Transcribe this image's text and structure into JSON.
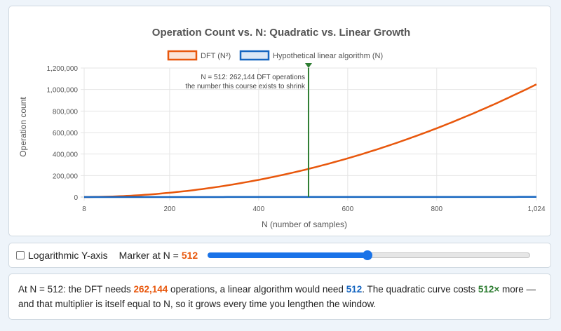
{
  "chart_data": {
    "type": "line",
    "title": "Operation Count vs. N: Quadratic vs. Linear Growth",
    "xlabel": "N (number of samples)",
    "ylabel": "Operation count",
    "xlim": [
      8,
      1024
    ],
    "ylim": [
      0,
      1200000
    ],
    "x_ticks": [
      8,
      200,
      400,
      600,
      800,
      1024
    ],
    "x_tick_labels": [
      "8",
      "200",
      "400",
      "600",
      "800",
      "1,024"
    ],
    "y_ticks": [
      0,
      200000,
      400000,
      600000,
      800000,
      1000000,
      1200000
    ],
    "y_tick_labels": [
      "0",
      "200,000",
      "400,000",
      "600,000",
      "800,000",
      "1,000,000",
      "1,200,000"
    ],
    "grid": true,
    "legend_position": "top",
    "x": [
      8,
      64,
      128,
      192,
      256,
      320,
      384,
      448,
      512,
      576,
      640,
      704,
      768,
      832,
      896,
      960,
      1024
    ],
    "series": [
      {
        "name": "DFT (N²)",
        "color": "#e8570c",
        "values": [
          64,
          4096,
          16384,
          36864,
          65536,
          102400,
          147456,
          200704,
          262144,
          331776,
          409600,
          495616,
          589824,
          692224,
          802816,
          921600,
          1048576
        ]
      },
      {
        "name": "Hypothetical linear algorithm (N)",
        "color": "#1565c0",
        "values": [
          8,
          64,
          128,
          192,
          256,
          320,
          384,
          448,
          512,
          576,
          640,
          704,
          768,
          832,
          896,
          960,
          1024
        ]
      }
    ],
    "marker": {
      "x": 512,
      "color": "#2e7d32",
      "annotation_line1": "N = 512: 262,144 DFT operations",
      "annotation_line2": "the number this course exists to shrink"
    }
  },
  "controls": {
    "log_label": "Logarithmic Y-axis",
    "log_checked": false,
    "marker_label": "Marker at N =",
    "marker_value": "512",
    "slider_min": 8,
    "slider_max": 1024,
    "slider_value": 512
  },
  "info": {
    "part1": "At N = 512: the DFT needs ",
    "dft_ops": "262,144",
    "part2": " operations, a linear algorithm would need ",
    "linear_ops": "512",
    "part3": ". The quadratic curve costs ",
    "multiplier": "512×",
    "part4": " more — and that multiplier is itself equal to N, so it grows every time you lengthen the window."
  },
  "colors": {
    "dft": "#e8570c",
    "linear": "#1565c0",
    "marker": "#2e7d32",
    "accent": "#1a73e8"
  }
}
